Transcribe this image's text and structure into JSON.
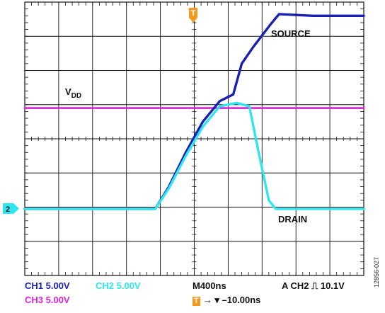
{
  "chart_data": {
    "type": "line",
    "x": {
      "divisions": 10,
      "per_division": "400ns",
      "range_ns": [
        0,
        4000
      ]
    },
    "y": {
      "divisions": 8,
      "per_division": "5.00V",
      "ground_division": 1.95,
      "range_div": [
        0,
        8
      ]
    },
    "series": [
      {
        "name": "SOURCE",
        "color": "#1a1fb4",
        "points_ns_div": [
          [
            0,
            1.95
          ],
          [
            800,
            1.95
          ],
          [
            1540,
            1.95
          ],
          [
            1700,
            2.6
          ],
          [
            1900,
            3.6
          ],
          [
            2100,
            4.5
          ],
          [
            2300,
            5.1
          ],
          [
            2460,
            5.3
          ],
          [
            2560,
            6.2
          ],
          [
            2700,
            6.7
          ],
          [
            2900,
            7.35
          ],
          [
            3000,
            7.65
          ],
          [
            3400,
            7.6
          ],
          [
            4000,
            7.6
          ]
        ]
      },
      {
        "name": "DRAIN",
        "color": "#2fe6f0",
        "points_ns_div": [
          [
            0,
            1.95
          ],
          [
            800,
            1.95
          ],
          [
            1540,
            1.95
          ],
          [
            1700,
            2.55
          ],
          [
            1900,
            3.5
          ],
          [
            2100,
            4.35
          ],
          [
            2300,
            4.95
          ],
          [
            2500,
            5.05
          ],
          [
            2650,
            4.95
          ],
          [
            2760,
            3.6
          ],
          [
            2880,
            2.2
          ],
          [
            2960,
            1.95
          ],
          [
            3400,
            1.95
          ],
          [
            4000,
            1.95
          ]
        ]
      },
      {
        "name": "VDD",
        "color": "#e020d8",
        "points_ns_div": [
          [
            0,
            4.9
          ],
          [
            4000,
            4.9
          ]
        ]
      }
    ],
    "annotations": {
      "source_label": "SOURCE",
      "drain_label": "DRAIN",
      "vdd_main": "V",
      "vdd_sub": "DD"
    },
    "marker_channel": "2",
    "trigger_marker": "T"
  },
  "footer": {
    "ch1": "CH1  5.00V",
    "ch2": "CH2  5.00V",
    "ch3": "CH3  5.00V",
    "timebase": "M400ns",
    "trigger": "A  CH2 ⎍ 10.1V",
    "offset_box": "T",
    "offset": "→ ▾ –10.00ns"
  },
  "figure_id": "12856-027"
}
